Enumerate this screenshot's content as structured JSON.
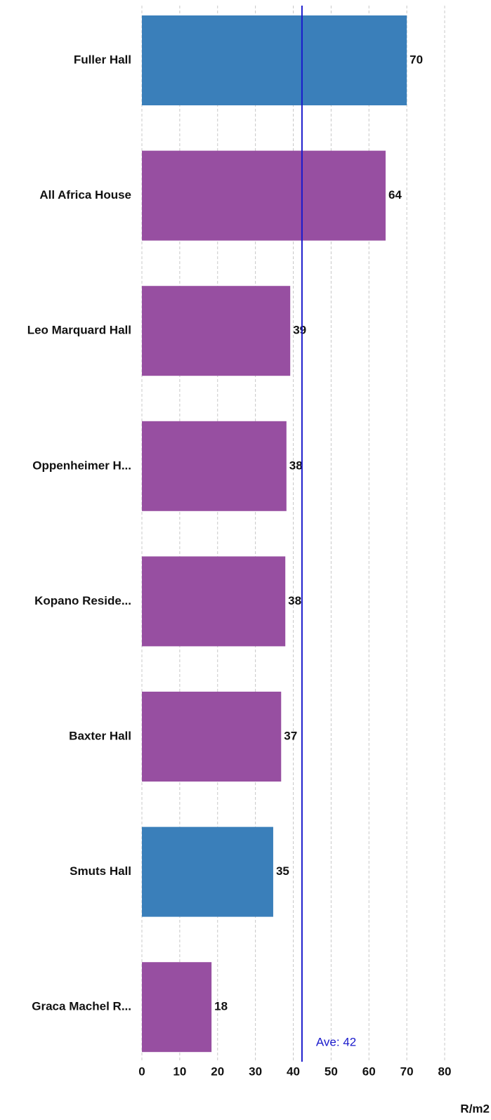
{
  "chart_data": {
    "type": "barh",
    "categories": [
      "Fuller Hall",
      "All Africa House",
      "Leo Marquard Hall",
      "Oppenheimer H...",
      "Kopano Reside...",
      "Baxter Hall",
      "Smuts Hall",
      "Graca Machel R..."
    ],
    "values": [
      70,
      64.4,
      39.2,
      38.2,
      37.9,
      36.8,
      34.7,
      18.4
    ],
    "value_labels": [
      "70",
      "64",
      "39",
      "38",
      "38",
      "37",
      "35",
      "18"
    ],
    "colors": [
      "#3a7fba",
      "#974fa1",
      "#974fa1",
      "#974fa1",
      "#974fa1",
      "#974fa1",
      "#3a7fba",
      "#974fa1"
    ],
    "xlim": [
      0,
      80
    ],
    "xticks": [
      0,
      10,
      20,
      30,
      40,
      50,
      60,
      70,
      80
    ],
    "x_label": "R/m2",
    "grid": true,
    "average": {
      "value": 42.3,
      "label": "Ave: 42",
      "color": "#1a1acc"
    }
  }
}
